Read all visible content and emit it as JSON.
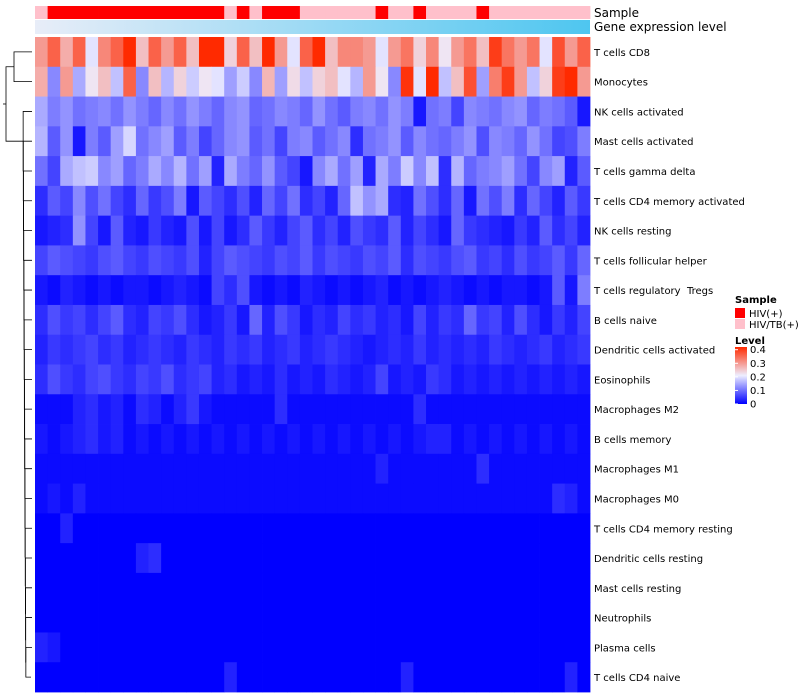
{
  "chart_data": {
    "type": "heatmap",
    "title": "",
    "annotation_rows": [
      "Sample",
      "Gene expression level"
    ],
    "rows": [
      "T cells CD8",
      "Monocytes",
      "NK cells activated",
      "Mast cells activated",
      "T cells gamma delta",
      "T cells CD4 memory activated",
      "NK cells resting",
      "T cells follicular helper",
      "T cells regulatory  Tregs",
      "B cells naive",
      "Dendritic cells activated",
      "Eosinophils",
      "Macrophages M2",
      "B cells memory",
      "Macrophages M1",
      "Macrophages M0",
      "T cells CD4 memory resting",
      "Dendritic cells resting",
      "Mast cells resting",
      "Neutrophils",
      "Plasma cells",
      "T cells CD4 naive"
    ],
    "n_samples": 44,
    "sample_groups": [
      "HIV/TB(+)",
      "HIV(+)",
      "HIV(+)",
      "HIV(+)",
      "HIV(+)",
      "HIV(+)",
      "HIV(+)",
      "HIV(+)",
      "HIV(+)",
      "HIV(+)",
      "HIV(+)",
      "HIV(+)",
      "HIV(+)",
      "HIV(+)",
      "HIV(+)",
      "HIV/TB(+)",
      "HIV(+)",
      "HIV/TB(+)",
      "HIV(+)",
      "HIV(+)",
      "HIV(+)",
      "HIV/TB(+)",
      "HIV/TB(+)",
      "HIV/TB(+)",
      "HIV/TB(+)",
      "HIV/TB(+)",
      "HIV/TB(+)",
      "HIV(+)",
      "HIV/TB(+)",
      "HIV/TB(+)",
      "HIV(+)",
      "HIV/TB(+)",
      "HIV/TB(+)",
      "HIV/TB(+)",
      "HIV/TB(+)",
      "HIV(+)",
      "HIV/TB(+)",
      "HIV/TB(+)",
      "HIV/TB(+)",
      "HIV/TB(+)",
      "HIV/TB(+)",
      "HIV/TB(+)",
      "HIV/TB(+)",
      "HIV/TB(+)"
    ],
    "expression_gradient": {
      "from": "#e8edf8",
      "to": "#4ec6f0"
    },
    "values": [
      [
        0.3,
        0.36,
        0.28,
        0.36,
        0.2,
        0.32,
        0.36,
        0.42,
        0.26,
        0.36,
        0.3,
        0.36,
        0.26,
        0.42,
        0.42,
        0.24,
        0.36,
        0.26,
        0.42,
        0.3,
        0.2,
        0.36,
        0.42,
        0.26,
        0.32,
        0.32,
        0.3,
        0.2,
        0.3,
        0.34,
        0.24,
        0.32,
        0.22,
        0.3,
        0.34,
        0.26,
        0.4,
        0.34,
        0.3,
        0.34,
        0.2,
        0.38,
        0.3,
        0.36
      ],
      [
        0.28,
        0.12,
        0.3,
        0.15,
        0.22,
        0.26,
        0.17,
        0.36,
        0.12,
        0.26,
        0.16,
        0.24,
        0.18,
        0.22,
        0.2,
        0.14,
        0.18,
        0.12,
        0.27,
        0.14,
        0.23,
        0.17,
        0.24,
        0.26,
        0.2,
        0.16,
        0.3,
        0.22,
        0.12,
        0.41,
        0.2,
        0.44,
        0.17,
        0.26,
        0.38,
        0.14,
        0.33,
        0.4,
        0.3,
        0.17,
        0.24,
        0.4,
        0.44,
        0.3
      ],
      [
        0.15,
        0.11,
        0.13,
        0.1,
        0.11,
        0.12,
        0.1,
        0.13,
        0.11,
        0.09,
        0.12,
        0.1,
        0.13,
        0.11,
        0.09,
        0.12,
        0.13,
        0.09,
        0.1,
        0.12,
        0.11,
        0.09,
        0.13,
        0.1,
        0.08,
        0.11,
        0.12,
        0.1,
        0.13,
        0.11,
        0.02,
        0.1,
        0.11,
        0.06,
        0.12,
        0.11,
        0.1,
        0.12,
        0.13,
        0.09,
        0.11,
        0.1,
        0.08,
        0.02
      ],
      [
        0.16,
        0.08,
        0.13,
        0.02,
        0.11,
        0.08,
        0.14,
        0.19,
        0.1,
        0.12,
        0.14,
        0.08,
        0.11,
        0.06,
        0.09,
        0.12,
        0.13,
        0.08,
        0.1,
        0.06,
        0.11,
        0.12,
        0.08,
        0.1,
        0.12,
        0.04,
        0.1,
        0.11,
        0.13,
        0.08,
        0.12,
        0.1,
        0.09,
        0.11,
        0.13,
        0.07,
        0.12,
        0.11,
        0.09,
        0.13,
        0.1,
        0.06,
        0.07,
        0.11
      ],
      [
        0.1,
        0.06,
        0.15,
        0.17,
        0.18,
        0.12,
        0.14,
        0.09,
        0.11,
        0.15,
        0.12,
        0.16,
        0.1,
        0.14,
        0.03,
        0.15,
        0.11,
        0.09,
        0.13,
        0.08,
        0.06,
        0.02,
        0.12,
        0.15,
        0.1,
        0.14,
        0.03,
        0.15,
        0.11,
        0.18,
        0.12,
        0.17,
        0.04,
        0.16,
        0.09,
        0.11,
        0.12,
        0.14,
        0.1,
        0.06,
        0.12,
        0.14,
        0.03,
        0.08
      ],
      [
        0.04,
        0.08,
        0.06,
        0.12,
        0.07,
        0.1,
        0.06,
        0.04,
        0.09,
        0.05,
        0.07,
        0.11,
        0.02,
        0.08,
        0.06,
        0.04,
        0.07,
        0.03,
        0.09,
        0.06,
        0.1,
        0.04,
        0.06,
        0.03,
        0.09,
        0.17,
        0.13,
        0.15,
        0.04,
        0.03,
        0.1,
        0.07,
        0.04,
        0.09,
        0.02,
        0.1,
        0.07,
        0.11,
        0.04,
        0.09,
        0.06,
        0.03,
        0.08,
        0.05
      ],
      [
        0.02,
        0.03,
        0.04,
        0.13,
        0.06,
        0.02,
        0.08,
        0.03,
        0.02,
        0.05,
        0.03,
        0.02,
        0.07,
        0.02,
        0.06,
        0.02,
        0.04,
        0.08,
        0.05,
        0.03,
        0.06,
        0.08,
        0.04,
        0.06,
        0.03,
        0.07,
        0.05,
        0.04,
        0.08,
        0.03,
        0.06,
        0.04,
        0.02,
        0.09,
        0.05,
        0.04,
        0.03,
        0.02,
        0.05,
        0.03,
        0.08,
        0.04,
        0.06,
        0.03
      ],
      [
        0.06,
        0.08,
        0.07,
        0.06,
        0.05,
        0.07,
        0.08,
        0.06,
        0.05,
        0.07,
        0.06,
        0.05,
        0.07,
        0.03,
        0.06,
        0.08,
        0.07,
        0.06,
        0.05,
        0.07,
        0.06,
        0.08,
        0.05,
        0.07,
        0.06,
        0.05,
        0.07,
        0.06,
        0.08,
        0.04,
        0.07,
        0.06,
        0.05,
        0.07,
        0.08,
        0.05,
        0.06,
        0.04,
        0.07,
        0.05,
        0.06,
        0.08,
        0.05,
        0.09
      ],
      [
        0.02,
        0.01,
        0.03,
        0.02,
        0.01,
        0.02,
        0.01,
        0.02,
        0.02,
        0.01,
        0.02,
        0.03,
        0.02,
        0.01,
        0.06,
        0.04,
        0.07,
        0.02,
        0.01,
        0.02,
        0.01,
        0.03,
        0.02,
        0.01,
        0.02,
        0.01,
        0.02,
        0.03,
        0.01,
        0.02,
        0.01,
        0.02,
        0.03,
        0.02,
        0.01,
        0.02,
        0.01,
        0.02,
        0.02,
        0.01,
        0.02,
        0.08,
        0.02,
        0.11
      ],
      [
        0.04,
        0.07,
        0.05,
        0.06,
        0.04,
        0.06,
        0.08,
        0.04,
        0.03,
        0.06,
        0.05,
        0.07,
        0.04,
        0.02,
        0.03,
        0.05,
        0.02,
        0.09,
        0.03,
        0.07,
        0.05,
        0.02,
        0.04,
        0.03,
        0.06,
        0.04,
        0.05,
        0.03,
        0.04,
        0.02,
        0.06,
        0.03,
        0.05,
        0.04,
        0.09,
        0.05,
        0.06,
        0.03,
        0.07,
        0.04,
        0.02,
        0.05,
        0.03,
        0.06
      ],
      [
        0.03,
        0.05,
        0.04,
        0.05,
        0.06,
        0.04,
        0.05,
        0.03,
        0.04,
        0.05,
        0.04,
        0.03,
        0.05,
        0.04,
        0.03,
        0.05,
        0.04,
        0.05,
        0.03,
        0.04,
        0.05,
        0.03,
        0.04,
        0.05,
        0.04,
        0.03,
        0.02,
        0.03,
        0.04,
        0.03,
        0.05,
        0.03,
        0.04,
        0.03,
        0.04,
        0.03,
        0.05,
        0.04,
        0.03,
        0.04,
        0.05,
        0.03,
        0.04,
        0.05
      ],
      [
        0.04,
        0.07,
        0.05,
        0.04,
        0.06,
        0.07,
        0.05,
        0.04,
        0.06,
        0.05,
        0.07,
        0.04,
        0.05,
        0.06,
        0.03,
        0.04,
        0.02,
        0.03,
        0.02,
        0.04,
        0.02,
        0.03,
        0.02,
        0.04,
        0.03,
        0.02,
        0.03,
        0.06,
        0.02,
        0.03,
        0.02,
        0.05,
        0.04,
        0.02,
        0.03,
        0.02,
        0.03,
        0.02,
        0.03,
        0.02,
        0.03,
        0.02,
        0.03,
        0.02
      ],
      [
        0.01,
        0.01,
        0.01,
        0.03,
        0.04,
        0.02,
        0.03,
        0.01,
        0.04,
        0.03,
        0.01,
        0.03,
        0.05,
        0.02,
        0.01,
        0.01,
        0.01,
        0.01,
        0.01,
        0.04,
        0.01,
        0.01,
        0.01,
        0.01,
        0.01,
        0.01,
        0.01,
        0.01,
        0.01,
        0.01,
        0.04,
        0.01,
        0.01,
        0.01,
        0.01,
        0.01,
        0.01,
        0.01,
        0.01,
        0.01,
        0.01,
        0.01,
        0.01,
        0.01
      ],
      [
        0.02,
        0.01,
        0.02,
        0.03,
        0.04,
        0.02,
        0.03,
        0.01,
        0.02,
        0.01,
        0.02,
        0.01,
        0.02,
        0.01,
        0.02,
        0.01,
        0.02,
        0.01,
        0.02,
        0.01,
        0.02,
        0.01,
        0.02,
        0.01,
        0.02,
        0.01,
        0.02,
        0.01,
        0.02,
        0.01,
        0.02,
        0.03,
        0.03,
        0.01,
        0.02,
        0.01,
        0.02,
        0.01,
        0.02,
        0.01,
        0.02,
        0.01,
        0.02,
        0.01
      ],
      [
        0.01,
        0.01,
        0.01,
        0.01,
        0.01,
        0.01,
        0.01,
        0.01,
        0.01,
        0.01,
        0.01,
        0.01,
        0.01,
        0.01,
        0.01,
        0.01,
        0.01,
        0.01,
        0.01,
        0.01,
        0.01,
        0.01,
        0.01,
        0.01,
        0.01,
        0.01,
        0.01,
        0.03,
        0.01,
        0.01,
        0.01,
        0.01,
        0.01,
        0.01,
        0.01,
        0.04,
        0.01,
        0.01,
        0.01,
        0.01,
        0.01,
        0.01,
        0.01,
        0.01
      ],
      [
        0.01,
        0.02,
        0.01,
        0.03,
        0.01,
        0.01,
        0.01,
        0.01,
        0.01,
        0.01,
        0.01,
        0.01,
        0.01,
        0.01,
        0.01,
        0.01,
        0.01,
        0.01,
        0.01,
        0.01,
        0.01,
        0.01,
        0.01,
        0.01,
        0.01,
        0.01,
        0.01,
        0.01,
        0.01,
        0.01,
        0.01,
        0.01,
        0.01,
        0.01,
        0.01,
        0.01,
        0.01,
        0.01,
        0.01,
        0.01,
        0.01,
        0.04,
        0.03,
        0.01
      ],
      [
        0.0,
        0.0,
        0.03,
        0.0,
        0.0,
        0.0,
        0.0,
        0.0,
        0.0,
        0.0,
        0.0,
        0.0,
        0.0,
        0.0,
        0.0,
        0.0,
        0.0,
        0.0,
        0.0,
        0.0,
        0.0,
        0.0,
        0.0,
        0.0,
        0.0,
        0.0,
        0.0,
        0.0,
        0.0,
        0.0,
        0.0,
        0.0,
        0.0,
        0.0,
        0.0,
        0.0,
        0.0,
        0.0,
        0.0,
        0.0,
        0.0,
        0.0,
        0.0,
        0.0
      ],
      [
        0.0,
        0.0,
        0.0,
        0.0,
        0.0,
        0.0,
        0.0,
        0.0,
        0.03,
        0.04,
        0.0,
        0.0,
        0.0,
        0.0,
        0.0,
        0.0,
        0.0,
        0.0,
        0.0,
        0.0,
        0.0,
        0.0,
        0.0,
        0.0,
        0.0,
        0.0,
        0.0,
        0.0,
        0.0,
        0.0,
        0.0,
        0.0,
        0.0,
        0.0,
        0.0,
        0.0,
        0.0,
        0.0,
        0.0,
        0.0,
        0.0,
        0.0,
        0.0,
        0.0
      ],
      [
        0.0,
        0.0,
        0.0,
        0.0,
        0.0,
        0.0,
        0.0,
        0.0,
        0.0,
        0.0,
        0.0,
        0.0,
        0.0,
        0.0,
        0.0,
        0.0,
        0.0,
        0.0,
        0.0,
        0.0,
        0.0,
        0.0,
        0.0,
        0.0,
        0.0,
        0.0,
        0.0,
        0.0,
        0.0,
        0.0,
        0.0,
        0.0,
        0.0,
        0.0,
        0.0,
        0.0,
        0.0,
        0.0,
        0.0,
        0.0,
        0.0,
        0.0,
        0.0,
        0.0
      ],
      [
        0.0,
        0.0,
        0.0,
        0.0,
        0.0,
        0.0,
        0.0,
        0.0,
        0.0,
        0.0,
        0.0,
        0.0,
        0.0,
        0.0,
        0.0,
        0.0,
        0.0,
        0.0,
        0.0,
        0.0,
        0.0,
        0.0,
        0.0,
        0.0,
        0.0,
        0.0,
        0.0,
        0.0,
        0.0,
        0.0,
        0.0,
        0.0,
        0.0,
        0.0,
        0.0,
        0.0,
        0.0,
        0.0,
        0.0,
        0.0,
        0.0,
        0.0,
        0.0,
        0.0
      ],
      [
        0.03,
        0.02,
        0.0,
        0.0,
        0.0,
        0.0,
        0.0,
        0.0,
        0.0,
        0.0,
        0.0,
        0.0,
        0.0,
        0.0,
        0.0,
        0.0,
        0.0,
        0.0,
        0.0,
        0.0,
        0.0,
        0.0,
        0.0,
        0.0,
        0.0,
        0.0,
        0.0,
        0.0,
        0.0,
        0.0,
        0.0,
        0.0,
        0.0,
        0.0,
        0.0,
        0.0,
        0.0,
        0.0,
        0.0,
        0.0,
        0.0,
        0.0,
        0.0,
        0.0
      ],
      [
        0.0,
        0.0,
        0.0,
        0.0,
        0.0,
        0.0,
        0.0,
        0.0,
        0.0,
        0.0,
        0.0,
        0.0,
        0.0,
        0.0,
        0.0,
        0.03,
        0.0,
        0.0,
        0.0,
        0.0,
        0.0,
        0.0,
        0.0,
        0.0,
        0.0,
        0.0,
        0.0,
        0.0,
        0.0,
        0.03,
        0.0,
        0.0,
        0.0,
        0.0,
        0.0,
        0.0,
        0.0,
        0.0,
        0.0,
        0.0,
        0.0,
        0.0,
        0.03,
        0.0
      ]
    ],
    "legend": {
      "sample_title": "Sample",
      "sample_items": [
        {
          "label": "HIV(+)",
          "color": "#ff0000"
        },
        {
          "label": "HIV/TB(+)",
          "color": "#ffc0cb"
        }
      ],
      "level_title": "Level",
      "level_ticks": [
        "0.4",
        "0.3",
        "0.2",
        "0.1",
        "0"
      ],
      "level_tick_values": [
        0.4,
        0.3,
        0.2,
        0.1,
        0
      ],
      "level_range": [
        0,
        0.42
      ],
      "level_stops": [
        {
          "value": 0.0,
          "color": "#0000ff"
        },
        {
          "value": 0.21,
          "color": "#eeeeff"
        },
        {
          "value": 0.42,
          "color": "#ff2a00"
        }
      ]
    }
  }
}
